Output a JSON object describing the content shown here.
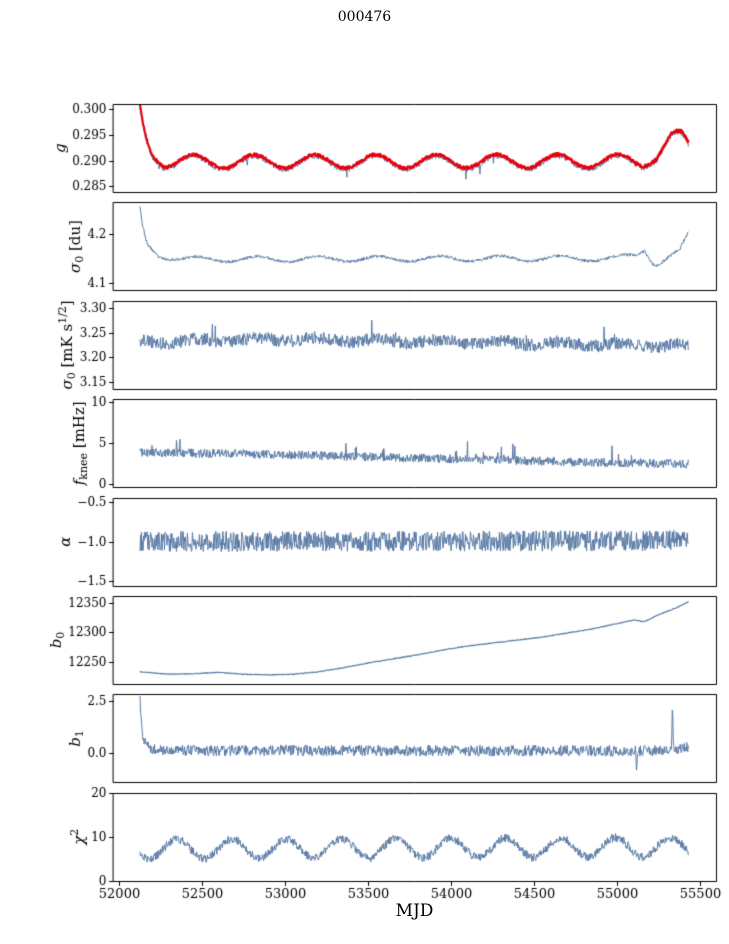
{
  "chart_data": {
    "type": "line",
    "title": "000476",
    "xlabel": "MJD",
    "grid": false,
    "legend": "none",
    "xlim": [
      51965,
      55595
    ],
    "xticks": [
      52000,
      52500,
      53000,
      53500,
      54000,
      54500,
      55000,
      55500
    ],
    "x_data_range": [
      52128,
      55430
    ],
    "colors": {
      "line": "#5a7ba6",
      "overlay": "#e8000b",
      "axis": "#000000",
      "background": "#ffffff"
    },
    "panels": [
      {
        "name": "g",
        "ylabel": "g",
        "ylabel_parts": [
          {
            "t": "g",
            "i": true
          }
        ],
        "ylim": [
          0.2838,
          0.301
        ],
        "yticks": [
          {
            "v": 0.285,
            "l": "0.285"
          },
          {
            "v": 0.29,
            "l": "0.290"
          },
          {
            "v": 0.295,
            "l": "0.295"
          },
          {
            "v": 0.3,
            "l": "0.300"
          }
        ],
        "series": [
          {
            "name": "g-measured",
            "color": "#5a7ba6",
            "width": 1.0,
            "seed": 7,
            "noise": 0.0006,
            "spike": {
              "p": 0.006,
              "a": -0.0025
            },
            "trend": [
              [
                52128,
                0.2995
              ],
              [
                52140,
                0.2972
              ],
              [
                52162,
                0.2942
              ],
              [
                52200,
                0.2913
              ],
              [
                52280,
                0.2897
              ],
              [
                52420,
                0.2896
              ],
              [
                55150,
                0.2897
              ],
              [
                55240,
                0.291
              ],
              [
                55330,
                0.2942
              ],
              [
                55385,
                0.2944
              ],
              [
                55430,
                0.2926
              ]
            ],
            "osc": {
              "period": 365,
              "amp": 0.0013,
              "peak": 52450
            }
          },
          {
            "name": "g-model",
            "color": "#e8000b",
            "width": 2.2,
            "seed": 11,
            "noise": 0.0003,
            "trend": [
              [
                52128,
                0.2998
              ],
              [
                52140,
                0.2974
              ],
              [
                52162,
                0.2944
              ],
              [
                52200,
                0.2915
              ],
              [
                52280,
                0.2899
              ],
              [
                52420,
                0.2898
              ],
              [
                55150,
                0.2899
              ],
              [
                55240,
                0.2912
              ],
              [
                55330,
                0.2944
              ],
              [
                55385,
                0.2946
              ],
              [
                55430,
                0.2928
              ]
            ],
            "osc": {
              "period": 365,
              "amp": 0.0013,
              "peak": 52450
            }
          }
        ]
      },
      {
        "name": "sigma0-du",
        "ylabel": "σ₀ [du]",
        "ylabel_parts": [
          {
            "t": "σ",
            "i": true
          },
          {
            "t": "0",
            "sub": true
          },
          {
            "t": " [du]"
          }
        ],
        "ylim": [
          4.085,
          4.265
        ],
        "yticks": [
          {
            "v": 4.1,
            "l": "4.1"
          },
          {
            "v": 4.2,
            "l": "4.2"
          }
        ],
        "series": [
          {
            "name": "sigma0-du",
            "color": "#5a7ba6",
            "width": 1.0,
            "seed": 23,
            "noise": 0.003,
            "trend": [
              [
                52128,
                4.253
              ],
              [
                52142,
                4.215
              ],
              [
                52170,
                4.178
              ],
              [
                52240,
                4.157
              ],
              [
                52400,
                4.149
              ],
              [
                55000,
                4.151
              ],
              [
                55120,
                4.157
              ],
              [
                55165,
                4.17
              ],
              [
                55205,
                4.148
              ],
              [
                55235,
                4.139
              ],
              [
                55300,
                4.151
              ],
              [
                55380,
                4.166
              ],
              [
                55430,
                4.201
              ]
            ],
            "osc": {
              "period": 365,
              "amp": 0.0055,
              "peak": 52470
            }
          }
        ]
      },
      {
        "name": "sigma0-mks",
        "ylabel": "σ₀ [mK s^1/2]",
        "ylabel_parts": [
          {
            "t": "σ",
            "i": true
          },
          {
            "t": "0",
            "sub": true
          },
          {
            "t": " [mK s"
          },
          {
            "t": "1/2",
            "sup": true
          },
          {
            "t": "]"
          }
        ],
        "ylim": [
          3.135,
          3.315
        ],
        "yticks": [
          {
            "v": 3.15,
            "l": "3.15"
          },
          {
            "v": 3.2,
            "l": "3.20"
          },
          {
            "v": 3.25,
            "l": "3.25"
          },
          {
            "v": 3.3,
            "l": "3.30"
          }
        ],
        "series": [
          {
            "name": "sigma0-mks",
            "color": "#5a7ba6",
            "width": 1.0,
            "seed": 37,
            "noise": 0.013,
            "spike": {
              "p": 0.008,
              "a": 0.035
            },
            "trend": [
              [
                52128,
                3.231
              ],
              [
                53000,
                3.237
              ],
              [
                54000,
                3.231
              ],
              [
                55430,
                3.223
              ]
            ],
            "osc": {
              "period": 365,
              "amp": 0.004,
              "peak": 52470
            }
          }
        ]
      },
      {
        "name": "fknee",
        "ylabel": "f_knee [mHz]",
        "ylabel_parts": [
          {
            "t": "f",
            "i": true
          },
          {
            "t": "knee",
            "sub": true
          },
          {
            "t": " [mHz]"
          }
        ],
        "ylim": [
          -0.4,
          10.4
        ],
        "yticks": [
          {
            "v": 0,
            "l": "0"
          },
          {
            "v": 5,
            "l": "5"
          },
          {
            "v": 10,
            "l": "10"
          }
        ],
        "series": [
          {
            "name": "fknee",
            "color": "#5a7ba6",
            "width": 1.0,
            "seed": 41,
            "noise": 0.55,
            "spike": {
              "p": 0.018,
              "a": 2.4
            },
            "trend": [
              [
                52128,
                3.9
              ],
              [
                52600,
                3.75
              ],
              [
                53200,
                3.5
              ],
              [
                54000,
                3.1
              ],
              [
                54800,
                2.7
              ],
              [
                55430,
                2.45
              ]
            ]
          }
        ]
      },
      {
        "name": "alpha",
        "ylabel": "α",
        "ylabel_parts": [
          {
            "t": "α",
            "i": true
          }
        ],
        "ylim": [
          -1.56,
          -0.44
        ],
        "yticks": [
          {
            "v": -1.5,
            "l": "−1.5"
          },
          {
            "v": -1.0,
            "l": "−1.0"
          },
          {
            "v": -0.5,
            "l": "−0.5"
          }
        ],
        "series": [
          {
            "name": "alpha",
            "color": "#5a7ba6",
            "width": 1.0,
            "seed": 53,
            "noise": 0.13,
            "trend": [
              [
                52128,
                -1.0
              ],
              [
                55430,
                -0.985
              ]
            ]
          }
        ]
      },
      {
        "name": "b0",
        "ylabel": "b₀",
        "ylabel_parts": [
          {
            "t": "b",
            "i": true
          },
          {
            "t": "0",
            "sub": true
          }
        ],
        "ylim": [
          12212,
          12362
        ],
        "yticks": [
          {
            "v": 12250,
            "l": "12250"
          },
          {
            "v": 12300,
            "l": "12300"
          },
          {
            "v": 12350,
            "l": "12350"
          }
        ],
        "series": [
          {
            "name": "b0",
            "color": "#5a7ba6",
            "width": 1.1,
            "seed": 61,
            "noise": 0.7,
            "trend": [
              [
                52128,
                12233
              ],
              [
                52300,
                12229
              ],
              [
                52450,
                12230
              ],
              [
                52600,
                12232
              ],
              [
                52750,
                12229
              ],
              [
                52900,
                12228
              ],
              [
                53050,
                12229
              ],
              [
                53200,
                12233
              ],
              [
                53350,
                12240
              ],
              [
                53500,
                12248
              ],
              [
                53650,
                12255
              ],
              [
                53800,
                12262
              ],
              [
                53950,
                12270
              ],
              [
                54100,
                12277
              ],
              [
                54250,
                12282
              ],
              [
                54400,
                12287
              ],
              [
                54550,
                12292
              ],
              [
                54700,
                12299
              ],
              [
                54850,
                12306
              ],
              [
                55000,
                12315
              ],
              [
                55100,
                12321
              ],
              [
                55160,
                12318
              ],
              [
                55250,
                12330
              ],
              [
                55350,
                12341
              ],
              [
                55430,
                12352
              ]
            ]
          }
        ]
      },
      {
        "name": "b1",
        "ylabel": "b₁",
        "ylabel_parts": [
          {
            "t": "b",
            "i": true
          },
          {
            "t": "1",
            "sub": true
          }
        ],
        "ylim": [
          -1.45,
          2.85
        ],
        "yticks": [
          {
            "v": 0.0,
            "l": "0.0"
          },
          {
            "v": 2.5,
            "l": "2.5"
          }
        ],
        "series": [
          {
            "name": "b1",
            "color": "#5a7ba6",
            "width": 1.0,
            "seed": 71,
            "noise": 0.27,
            "trend": [
              [
                52128,
                2.6
              ],
              [
                52136,
                1.4
              ],
              [
                52150,
                0.55
              ],
              [
                52180,
                0.25
              ],
              [
                52260,
                0.12
              ],
              [
                55090,
                0.1
              ],
              [
                55110,
                0.1
              ],
              [
                55116,
                -0.9
              ],
              [
                55122,
                0.1
              ],
              [
                55326,
                0.1
              ],
              [
                55333,
                2.25
              ],
              [
                55340,
                0.15
              ],
              [
                55430,
                0.3
              ]
            ]
          }
        ]
      },
      {
        "name": "chi2",
        "ylabel": "χ²",
        "ylabel_parts": [
          {
            "t": "χ",
            "i": true
          },
          {
            "t": "2",
            "sup": true
          }
        ],
        "ylim": [
          0,
          20
        ],
        "yticks": [
          {
            "v": 0,
            "l": "0"
          },
          {
            "v": 10,
            "l": "10"
          },
          {
            "v": 20,
            "l": "20"
          }
        ],
        "series": [
          {
            "name": "chi2",
            "color": "#5a7ba6",
            "width": 1.0,
            "seed": 83,
            "noise": 0.95,
            "trend": [
              [
                52128,
                7.2
              ],
              [
                55430,
                7.7
              ]
            ],
            "osc": {
              "period": 330,
              "amp": 2.2,
              "peak": 52350
            }
          }
        ]
      }
    ]
  }
}
